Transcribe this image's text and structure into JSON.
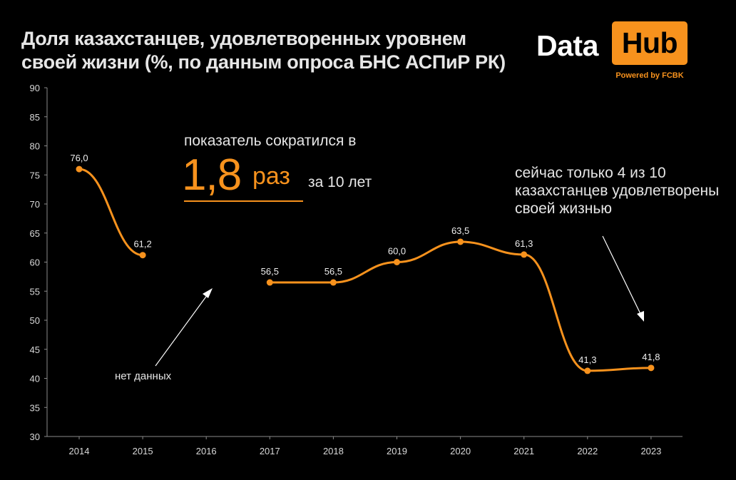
{
  "title": "Доля казахстанцев, удовлетворенных уровнем своей жизни (%, по данным опроса  БНС АСПиР РК)",
  "logo": {
    "part1": "Data",
    "part2": "Hub",
    "tagline": "Powered by FCBK",
    "accent_color": "#f7921d"
  },
  "annotations": {
    "decrease_prefix": "показатель сократился в",
    "decrease_value": "1,8",
    "decrease_unit": "раз",
    "decrease_suffix": "за 10 лет",
    "right_note": "сейчас только 4 из 10 казахстанцев удовлетворены своей жизнью",
    "no_data": "нет данных"
  },
  "chart_data": {
    "type": "line",
    "x": [
      "2014",
      "2015",
      "2016",
      "2017",
      "2018",
      "2019",
      "2020",
      "2021",
      "2022",
      "2023"
    ],
    "series": [
      {
        "values": [
          76.0,
          61.2,
          null,
          56.5,
          56.5,
          60.0,
          63.5,
          61.3,
          41.3,
          41.8
        ],
        "labels": [
          "76,0",
          "61,2",
          "",
          "56,5",
          "56,5",
          "60,0",
          "63,5",
          "61,3",
          "41,3",
          "41,8"
        ],
        "color": "#f7921d"
      }
    ],
    "ylim": [
      30,
      90
    ],
    "yticks": [
      "30",
      "35",
      "40",
      "45",
      "50",
      "55",
      "60",
      "65",
      "70",
      "75",
      "80",
      "85",
      "90"
    ],
    "grid": false,
    "smooth": true
  }
}
